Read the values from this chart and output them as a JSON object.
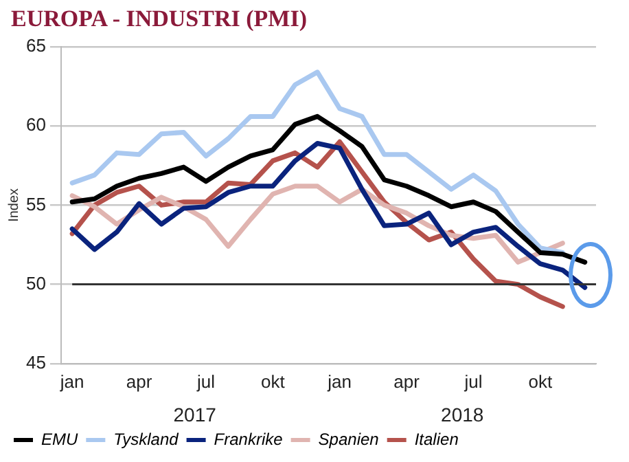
{
  "chart_data": {
    "type": "line",
    "title": "EUROPA - INDUSTRI (PMI)",
    "ylabel": "Index",
    "categories": [
      "jan",
      null,
      null,
      "apr",
      null,
      null,
      "jul",
      null,
      null,
      "okt",
      null,
      null,
      "jan",
      null,
      null,
      "apr",
      null,
      null,
      "jul",
      null,
      null,
      "okt",
      null,
      null
    ],
    "annotations": [
      "2017",
      "2018"
    ],
    "series": [
      {
        "name": "EMU",
        "color": "#000000",
        "values": [
          55.2,
          55.4,
          56.2,
          56.7,
          57.0,
          57.4,
          56.5,
          57.4,
          58.1,
          58.5,
          60.1,
          60.6,
          59.7,
          58.7,
          56.6,
          56.2,
          55.6,
          54.9,
          55.2,
          54.6,
          53.3,
          52.0,
          51.9,
          51.4
        ]
      },
      {
        "name": "Tyskland",
        "color": "#a9c8f0",
        "values": [
          56.4,
          56.9,
          58.3,
          58.2,
          59.5,
          59.6,
          58.1,
          59.2,
          60.6,
          60.6,
          62.6,
          63.4,
          61.1,
          60.6,
          58.2,
          58.2,
          57.1,
          56.0,
          56.9,
          55.9,
          53.8,
          52.3,
          52.0,
          null
        ]
      },
      {
        "name": "Frankrike",
        "color": "#0a237d",
        "values": [
          53.5,
          52.2,
          53.3,
          55.1,
          53.8,
          54.8,
          54.9,
          55.8,
          56.2,
          56.2,
          57.8,
          58.9,
          58.6,
          56.0,
          53.7,
          53.8,
          54.5,
          52.5,
          53.3,
          53.6,
          52.4,
          51.3,
          50.9,
          49.8
        ]
      },
      {
        "name": "Spanien",
        "color": "#e0b4b0",
        "values": [
          55.6,
          54.9,
          53.8,
          54.7,
          55.5,
          54.9,
          54.1,
          52.4,
          54.1,
          55.7,
          56.2,
          56.2,
          55.2,
          56.0,
          55.0,
          54.5,
          53.7,
          53.1,
          52.9,
          53.1,
          51.4,
          52.0,
          52.6,
          null
        ]
      },
      {
        "name": "Italien",
        "color": "#b5524c",
        "values": [
          53.2,
          55.0,
          55.8,
          56.2,
          55.0,
          55.2,
          55.2,
          56.4,
          56.3,
          57.8,
          58.3,
          57.4,
          59.0,
          57.1,
          55.2,
          53.9,
          52.8,
          53.3,
          51.6,
          50.2,
          50.0,
          49.2,
          48.6,
          null
        ]
      }
    ],
    "ylim": [
      45,
      65
    ],
    "yticks": [
      45,
      50,
      55,
      60,
      65
    ],
    "grid": "y",
    "ref_lines": [
      {
        "axis": "y",
        "value": 50,
        "color": "#333333"
      }
    ],
    "legend": "bottom",
    "marker": "none",
    "line_style": "solid"
  }
}
